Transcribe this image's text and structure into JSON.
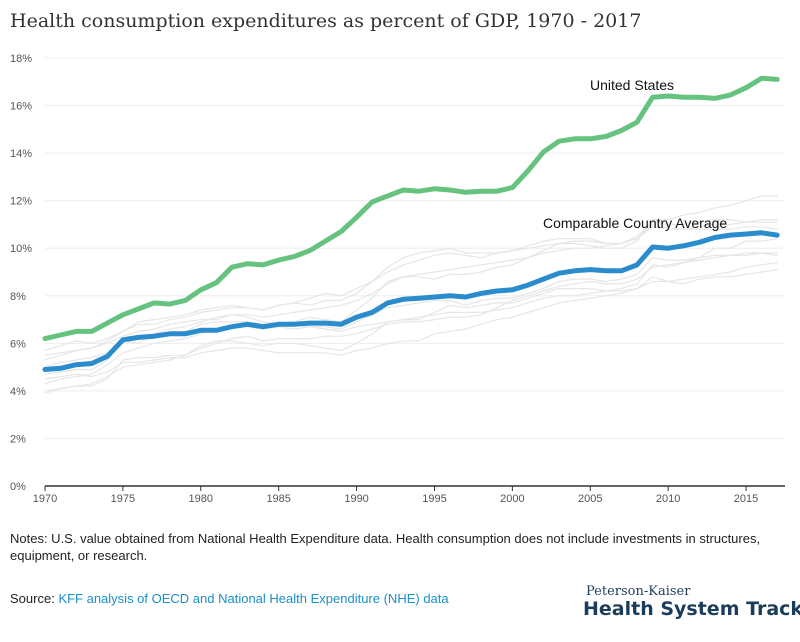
{
  "header": {
    "title": "Health consumption expenditures as percent of GDP, 1970 - 2017"
  },
  "notes": "Notes: U.S. value obtained from National Health Expenditure data. Health consumption does not include investments in structures, equipment, or research.",
  "source": {
    "label": "Source:",
    "link_text": "KFF analysis of OECD and National Health Expenditure (NHE) data"
  },
  "logo": {
    "top": "Peterson-Kaiser",
    "main": "Health System Tracker"
  },
  "colors": {
    "us": "#66c27f",
    "avg": "#2a8ccc",
    "background_lines": "#e6e6e6",
    "axis": "#333333",
    "gridline": "#eeeeee"
  },
  "chart_data": {
    "type": "line",
    "title": "Health consumption expenditures as percent of GDP, 1970 - 2017",
    "xlabel": "",
    "ylabel": "",
    "xlim": [
      1970,
      2017.5
    ],
    "ylim": [
      0,
      18
    ],
    "x_ticks": [
      "1970",
      "1975",
      "1980",
      "1985",
      "1990",
      "1995",
      "2000",
      "2005",
      "2010",
      "2015"
    ],
    "y_ticks": [
      "0%",
      "2%",
      "4%",
      "6%",
      "8%",
      "10%",
      "12%",
      "14%",
      "16%",
      "18%"
    ],
    "x": [
      1970,
      1971,
      1972,
      1973,
      1974,
      1975,
      1976,
      1977,
      1978,
      1979,
      1980,
      1981,
      1982,
      1983,
      1984,
      1985,
      1986,
      1987,
      1988,
      1989,
      1990,
      1991,
      1992,
      1993,
      1994,
      1995,
      1996,
      1997,
      1998,
      1999,
      2000,
      2001,
      2002,
      2003,
      2004,
      2005,
      2006,
      2007,
      2008,
      2009,
      2010,
      2011,
      2012,
      2013,
      2014,
      2015,
      2016,
      2017
    ],
    "series": [
      {
        "name": "United States",
        "color": "#66c27f",
        "values": [
          6.2,
          6.35,
          6.5,
          6.5,
          6.85,
          7.2,
          7.45,
          7.7,
          7.65,
          7.8,
          8.25,
          8.55,
          9.2,
          9.35,
          9.3,
          9.5,
          9.65,
          9.9,
          10.3,
          10.7,
          11.3,
          11.95,
          12.2,
          12.45,
          12.4,
          12.5,
          12.45,
          12.35,
          12.4,
          12.4,
          12.55,
          13.25,
          14.05,
          14.5,
          14.6,
          14.6,
          14.7,
          14.95,
          15.3,
          16.35,
          16.4,
          16.35,
          16.35,
          16.3,
          16.45,
          16.75,
          17.15,
          17.1
        ]
      },
      {
        "name": "Comparable Country Average",
        "color": "#2a8ccc",
        "values": [
          4.9,
          4.95,
          5.1,
          5.15,
          5.45,
          6.15,
          6.25,
          6.3,
          6.4,
          6.4,
          6.55,
          6.55,
          6.7,
          6.8,
          6.7,
          6.8,
          6.8,
          6.85,
          6.85,
          6.8,
          7.1,
          7.3,
          7.7,
          7.85,
          7.9,
          7.95,
          8.0,
          7.95,
          8.1,
          8.2,
          8.25,
          8.45,
          8.7,
          8.95,
          9.05,
          9.1,
          9.05,
          9.05,
          9.3,
          10.05,
          10.0,
          10.1,
          10.25,
          10.45,
          10.55,
          10.6,
          10.65,
          10.55
        ]
      },
      {
        "color": "#e6e6e6",
        "values": [
          4.3,
          4.5,
          4.6,
          4.7,
          5.1,
          5.6,
          5.8,
          6.0,
          6.1,
          6.2,
          6.4,
          6.6,
          6.7,
          6.7,
          6.6,
          6.7,
          6.6,
          6.7,
          6.7,
          6.6,
          6.9,
          7.2,
          7.5,
          7.6,
          7.7,
          7.8,
          7.8,
          7.6,
          7.8,
          7.9,
          7.9,
          8.1,
          8.3,
          8.6,
          8.7,
          8.7,
          8.6,
          8.7,
          8.9,
          9.6,
          9.5,
          9.5,
          9.6,
          9.7,
          9.7,
          9.7,
          9.8,
          9.7
        ]
      },
      {
        "color": "#e6e6e6",
        "values": [
          5.3,
          5.5,
          5.7,
          5.8,
          6.1,
          6.5,
          6.9,
          7.0,
          7.1,
          7.2,
          7.4,
          7.5,
          7.6,
          7.5,
          7.4,
          7.6,
          7.7,
          7.9,
          8.1,
          8.0,
          8.3,
          8.6,
          9.0,
          9.3,
          9.5,
          9.7,
          9.8,
          9.7,
          9.6,
          9.8,
          9.9,
          10.1,
          10.3,
          10.4,
          10.4,
          10.4,
          10.2,
          10.2,
          10.5,
          11.1,
          11.0,
          11.0,
          11.1,
          11.2,
          11.2,
          11.1,
          11.2,
          11.2
        ]
      },
      {
        "color": "#e6e6e6",
        "values": [
          4.0,
          4.1,
          4.2,
          4.3,
          4.6,
          5.0,
          5.1,
          5.2,
          5.3,
          5.5,
          5.8,
          6.0,
          6.2,
          6.3,
          6.1,
          6.2,
          6.2,
          6.2,
          6.3,
          6.3,
          6.4,
          6.6,
          6.8,
          6.9,
          6.9,
          7.0,
          7.1,
          7.1,
          7.2,
          7.5,
          7.8,
          8.0,
          8.2,
          8.4,
          8.5,
          8.6,
          8.5,
          8.5,
          8.7,
          9.2,
          9.3,
          9.4,
          9.5,
          9.6,
          9.7,
          9.8,
          9.8,
          9.8
        ]
      },
      {
        "color": "#e6e6e6",
        "values": [
          4.7,
          4.8,
          4.9,
          4.9,
          5.3,
          6.1,
          6.0,
          6.4,
          6.4,
          6.5,
          6.8,
          6.9,
          6.9,
          6.9,
          6.8,
          6.8,
          6.9,
          7.1,
          7.0,
          6.9,
          7.4,
          7.9,
          8.6,
          8.8,
          8.8,
          8.7,
          8.9,
          8.9,
          9.0,
          9.2,
          9.3,
          9.6,
          9.9,
          10.2,
          10.2,
          10.1,
          10.0,
          10.0,
          10.3,
          11.2,
          11.2,
          11.4,
          11.5,
          11.7,
          11.8,
          12.0,
          12.2,
          12.2
        ]
      },
      {
        "color": "#e6e6e6",
        "values": [
          5.0,
          5.2,
          5.3,
          5.4,
          5.6,
          6.0,
          6.3,
          6.4,
          6.6,
          6.7,
          6.9,
          7.1,
          7.2,
          7.1,
          6.9,
          6.8,
          6.8,
          6.7,
          6.6,
          6.5,
          6.7,
          6.8,
          6.9,
          7.0,
          7.0,
          7.3,
          7.6,
          7.5,
          7.6,
          7.7,
          7.7,
          7.9,
          8.1,
          8.3,
          8.3,
          8.3,
          8.2,
          8.2,
          8.3,
          8.8,
          8.6,
          8.5,
          8.7,
          8.8,
          8.8,
          8.9,
          9.0,
          9.1
        ]
      },
      {
        "color": "#e6e6e6",
        "values": [
          3.9,
          4.1,
          4.2,
          4.2,
          4.5,
          5.3,
          5.4,
          5.4,
          5.5,
          5.5,
          5.9,
          6.1,
          6.1,
          6.0,
          5.9,
          6.0,
          6.0,
          5.9,
          5.8,
          5.7,
          6.0,
          6.4,
          6.9,
          7.0,
          7.1,
          7.2,
          7.3,
          7.3,
          7.3,
          7.4,
          7.5,
          7.7,
          7.9,
          8.0,
          8.0,
          8.1,
          8.2,
          8.3,
          8.5,
          9.3,
          9.2,
          9.4,
          9.6,
          10.0,
          10.0,
          10.3,
          10.3,
          10.4
        ]
      },
      {
        "color": "#e6e6e6",
        "values": [
          5.7,
          5.9,
          6.1,
          6.0,
          6.2,
          6.5,
          6.8,
          6.8,
          7.0,
          7.1,
          7.3,
          7.4,
          7.5,
          7.5,
          7.4,
          7.6,
          7.7,
          7.6,
          7.8,
          7.8,
          8.1,
          8.6,
          9.2,
          9.6,
          9.8,
          9.9,
          10.0,
          9.8,
          9.8,
          9.8,
          9.9,
          10.0,
          10.1,
          10.2,
          10.3,
          10.3,
          10.2,
          10.2,
          10.4,
          11.0,
          10.8,
          10.8,
          10.8,
          10.8,
          10.8,
          10.9,
          10.9,
          10.8
        ]
      },
      {
        "color": "#e6e6e6",
        "values": [
          4.5,
          4.6,
          4.7,
          4.6,
          4.8,
          5.2,
          5.2,
          5.3,
          5.4,
          5.4,
          5.6,
          5.7,
          5.8,
          5.8,
          5.7,
          5.6,
          5.6,
          5.6,
          5.6,
          5.5,
          5.7,
          5.8,
          6.0,
          6.1,
          6.1,
          6.4,
          6.5,
          6.6,
          6.8,
          7.0,
          7.1,
          7.3,
          7.5,
          7.7,
          7.8,
          7.9,
          8.0,
          8.1,
          8.3,
          8.6,
          8.6,
          8.7,
          8.8,
          8.9,
          9.0,
          9.2,
          9.3,
          9.4
        ]
      },
      {
        "color": "#e6e6e6",
        "values": [
          5.5,
          5.6,
          5.7,
          5.8,
          6.0,
          6.3,
          6.5,
          6.6,
          6.8,
          6.9,
          7.0,
          7.0,
          7.2,
          7.2,
          7.1,
          7.2,
          7.3,
          7.4,
          7.5,
          7.6,
          7.8,
          8.1,
          8.5,
          8.8,
          8.9,
          9.0,
          9.1,
          9.2,
          9.3,
          9.4,
          9.5,
          9.6,
          9.8,
          9.9,
          10.0,
          10.0,
          10.1,
          10.2,
          10.4,
          10.9,
          10.8,
          10.8,
          10.9,
          11.0,
          11.0,
          11.1,
          11.1,
          11.1
        ]
      }
    ]
  }
}
